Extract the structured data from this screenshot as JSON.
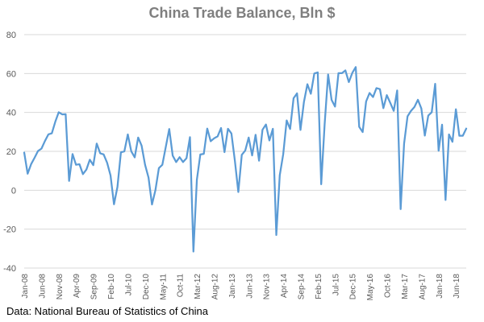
{
  "chart_data": {
    "type": "line",
    "title": "China Trade Balance, Bln $",
    "source": "Data: National Bureau of Statistics of China",
    "xlabel": "",
    "ylabel": "",
    "ylim": [
      -40,
      80
    ],
    "yticks": [
      -40,
      -20,
      0,
      20,
      40,
      60,
      80
    ],
    "grid": true,
    "legend": "none",
    "line_color": "#5b9bd5",
    "x_tick_labels": [
      "Jan-08",
      "Jun-08",
      "Nov-08",
      "Apr-09",
      "Sep-09",
      "Feb-10",
      "Jul-10",
      "Dec-10",
      "May-11",
      "Oct-11",
      "Mar-12",
      "Aug-12",
      "Jan-13",
      "Jun-13",
      "Nov-13",
      "Apr-14",
      "Sep-14",
      "Feb-15",
      "Jul-15",
      "Dec-15",
      "May-16",
      "Oct-16",
      "Mar-17",
      "Aug-17",
      "Jan-18",
      "Jun-18"
    ],
    "series": [
      {
        "start": "Jan-08",
        "frequency": "monthly",
        "values": [
          19.4,
          8.5,
          13.4,
          16.7,
          20.2,
          21.4,
          25.3,
          28.7,
          29.3,
          35.2,
          40.1,
          39.0,
          39.1,
          4.8,
          18.6,
          13.1,
          13.4,
          8.3,
          10.6,
          15.7,
          12.9,
          24.0,
          19.0,
          18.4,
          14.2,
          7.6,
          -7.2,
          1.7,
          19.5,
          20.0,
          28.7,
          20.0,
          16.9,
          27.1,
          22.9,
          13.1,
          6.5,
          -7.3,
          0.1,
          11.4,
          13.1,
          22.3,
          31.5,
          17.8,
          14.5,
          17.0,
          14.5,
          16.5,
          27.3,
          -31.5,
          5.4,
          18.4,
          18.7,
          31.7,
          25.2,
          26.7,
          27.7,
          32.0,
          19.6,
          31.6,
          29.2,
          15.2,
          -0.9,
          18.2,
          20.4,
          27.1,
          17.9,
          28.5,
          15.2,
          31.1,
          33.8,
          25.6,
          31.6,
          -23.0,
          7.7,
          18.5,
          35.9,
          31.5,
          47.3,
          49.8,
          31.0,
          45.4,
          54.5,
          49.6,
          60.0,
          60.6,
          3.1,
          34.1,
          59.5,
          46.5,
          43.0,
          60.2,
          60.2,
          61.6,
          55.6,
          60.3,
          63.3,
          32.6,
          29.9,
          45.6,
          50.0,
          47.9,
          52.5,
          52.0,
          42.2,
          48.9,
          44.9,
          40.8,
          51.3,
          -9.7,
          24.0,
          38.0,
          40.8,
          42.8,
          46.5,
          42.0,
          28.1,
          38.4,
          40.1,
          54.7,
          20.3,
          33.7,
          -5.0,
          28.7,
          24.9,
          41.6,
          28.0,
          28.0,
          31.7
        ]
      }
    ]
  }
}
